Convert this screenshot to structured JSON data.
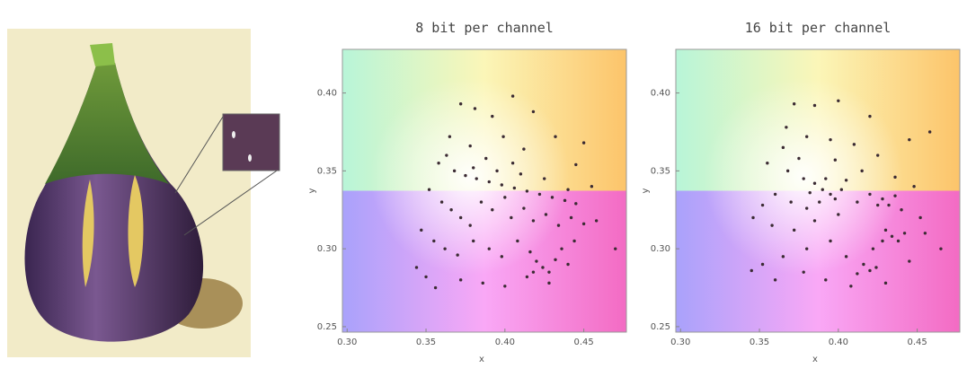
{
  "chart_data": [
    {
      "type": "scatter",
      "title": "8 bit per channel",
      "x_label": "x",
      "y_label": "y",
      "color": "#3b2b33",
      "xlim": [
        0.297,
        0.477
      ],
      "ylim": [
        0.2465,
        0.428
      ],
      "xticks": [
        {
          "value": 0.3,
          "label": "0.30"
        },
        0.35,
        {
          "value": 0.4,
          "label": "0.40"
        },
        0.45
      ],
      "yticks": [
        0.25,
        {
          "value": 0.3,
          "label": "0.30"
        },
        0.35,
        {
          "value": 0.4,
          "label": "0.40"
        }
      ],
      "x": [
        0.372,
        0.381,
        0.392,
        0.405,
        0.418,
        0.365,
        0.378,
        0.399,
        0.412,
        0.432,
        0.45,
        0.358,
        0.368,
        0.375,
        0.382,
        0.39,
        0.398,
        0.406,
        0.414,
        0.422,
        0.43,
        0.438,
        0.445,
        0.38,
        0.395,
        0.41,
        0.425,
        0.44,
        0.352,
        0.36,
        0.366,
        0.372,
        0.378,
        0.385,
        0.392,
        0.4,
        0.404,
        0.412,
        0.418,
        0.426,
        0.434,
        0.442,
        0.45,
        0.458,
        0.347,
        0.355,
        0.362,
        0.37,
        0.38,
        0.39,
        0.398,
        0.408,
        0.416,
        0.42,
        0.424,
        0.428,
        0.418,
        0.432,
        0.436,
        0.444,
        0.344,
        0.35,
        0.356,
        0.372,
        0.386,
        0.4,
        0.414,
        0.428,
        0.44,
        0.47,
        0.455,
        0.363,
        0.388,
        0.405,
        0.445
      ],
      "y": [
        0.393,
        0.39,
        0.385,
        0.398,
        0.388,
        0.372,
        0.366,
        0.372,
        0.364,
        0.372,
        0.368,
        0.355,
        0.35,
        0.347,
        0.345,
        0.343,
        0.341,
        0.339,
        0.337,
        0.335,
        0.333,
        0.331,
        0.329,
        0.352,
        0.35,
        0.348,
        0.345,
        0.338,
        0.338,
        0.33,
        0.325,
        0.32,
        0.315,
        0.33,
        0.325,
        0.333,
        0.32,
        0.326,
        0.318,
        0.322,
        0.315,
        0.32,
        0.316,
        0.318,
        0.312,
        0.305,
        0.3,
        0.296,
        0.305,
        0.3,
        0.295,
        0.305,
        0.298,
        0.292,
        0.288,
        0.285,
        0.285,
        0.293,
        0.3,
        0.305,
        0.288,
        0.282,
        0.275,
        0.28,
        0.278,
        0.276,
        0.282,
        0.278,
        0.29,
        0.3,
        0.34,
        0.36,
        0.358,
        0.355,
        0.354
      ]
    },
    {
      "type": "scatter",
      "title": "16 bit per channel",
      "x_label": "x",
      "y_label": "y",
      "color": "#3b2b33",
      "xlim": [
        0.297,
        0.477
      ],
      "ylim": [
        0.2465,
        0.428
      ],
      "xticks": [
        {
          "value": 0.3,
          "label": "0.30"
        },
        0.35,
        {
          "value": 0.4,
          "label": "0.40"
        },
        0.45
      ],
      "yticks": [
        0.25,
        {
          "value": 0.3,
          "label": "0.30"
        },
        0.35,
        {
          "value": 0.4,
          "label": "0.40"
        }
      ],
      "x": [
        0.372,
        0.385,
        0.4,
        0.42,
        0.367,
        0.38,
        0.395,
        0.41,
        0.425,
        0.445,
        0.355,
        0.368,
        0.378,
        0.385,
        0.39,
        0.395,
        0.398,
        0.402,
        0.388,
        0.382,
        0.392,
        0.405,
        0.38,
        0.37,
        0.36,
        0.352,
        0.346,
        0.358,
        0.372,
        0.385,
        0.4,
        0.412,
        0.42,
        0.428,
        0.432,
        0.436,
        0.425,
        0.44,
        0.43,
        0.434,
        0.438,
        0.428,
        0.442,
        0.422,
        0.416,
        0.42,
        0.424,
        0.412,
        0.405,
        0.395,
        0.38,
        0.365,
        0.352,
        0.345,
        0.36,
        0.378,
        0.392,
        0.408,
        0.43,
        0.445,
        0.455,
        0.465,
        0.452,
        0.448,
        0.458,
        0.365,
        0.375,
        0.398,
        0.415,
        0.436
      ],
      "y": [
        0.393,
        0.392,
        0.395,
        0.385,
        0.378,
        0.372,
        0.37,
        0.367,
        0.36,
        0.37,
        0.355,
        0.35,
        0.345,
        0.342,
        0.338,
        0.335,
        0.332,
        0.338,
        0.33,
        0.336,
        0.345,
        0.344,
        0.326,
        0.33,
        0.335,
        0.328,
        0.32,
        0.315,
        0.312,
        0.318,
        0.322,
        0.33,
        0.335,
        0.332,
        0.328,
        0.334,
        0.328,
        0.325,
        0.312,
        0.308,
        0.305,
        0.305,
        0.31,
        0.3,
        0.29,
        0.286,
        0.288,
        0.284,
        0.295,
        0.305,
        0.3,
        0.295,
        0.29,
        0.286,
        0.28,
        0.285,
        0.28,
        0.276,
        0.278,
        0.292,
        0.31,
        0.3,
        0.32,
        0.34,
        0.375,
        0.365,
        0.358,
        0.357,
        0.35,
        0.346
      ]
    }
  ]
}
